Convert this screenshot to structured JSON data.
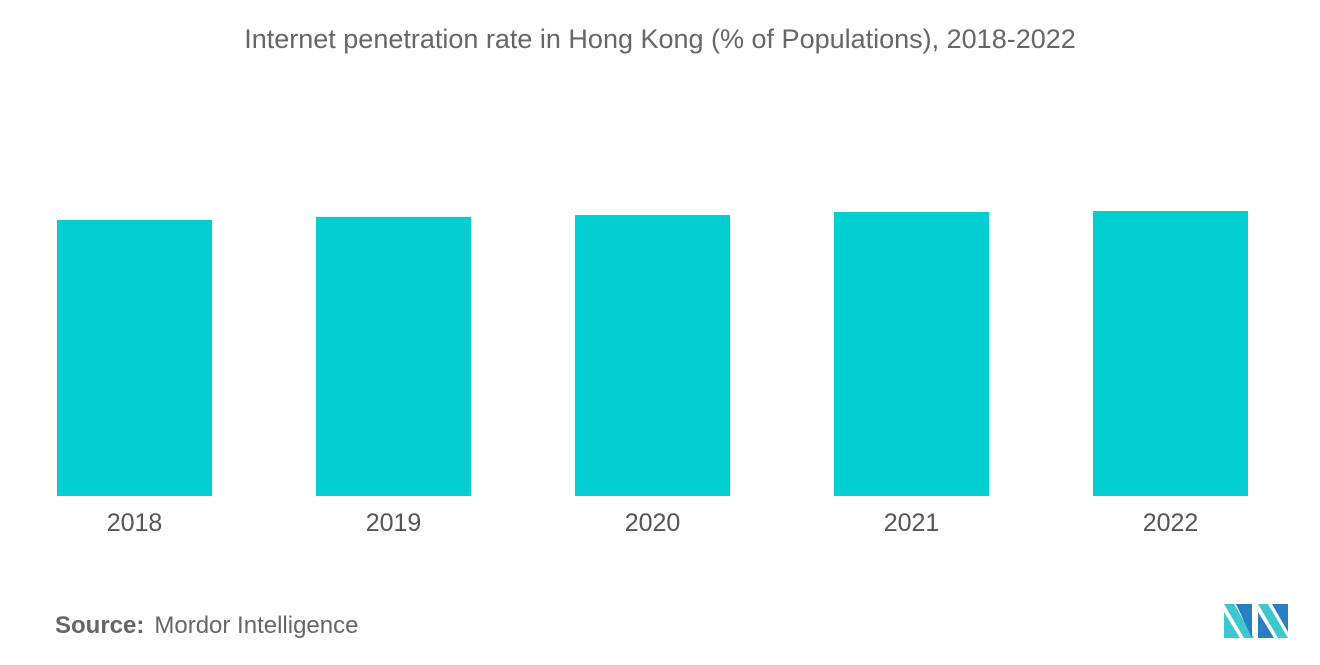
{
  "chart_data": {
    "type": "bar",
    "title": "Internet penetration rate in Hong Kong (% of Populations), 2018-2022",
    "categories": [
      "2018",
      "2019",
      "2020",
      "2021",
      "2022"
    ],
    "values": [
      89.5,
      90.5,
      91.1,
      92.1,
      92.4
    ],
    "ylim": [
      0,
      100
    ],
    "xlabel": "",
    "ylabel": "",
    "grid": false,
    "bar_color": "#00CED1"
  },
  "source": {
    "label": "Source:",
    "value": "Mordor Intelligence"
  },
  "logo": {
    "colors": [
      "#2A7FC1",
      "#3CC8CE"
    ]
  }
}
